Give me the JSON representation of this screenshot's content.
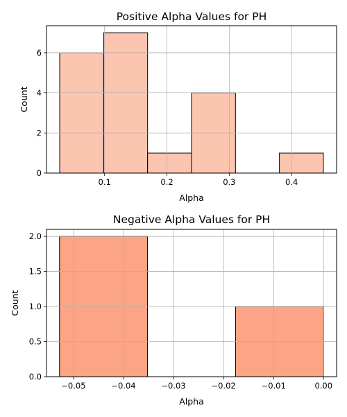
{
  "chart_data": [
    {
      "type": "bar",
      "title": "Positive Alpha Values for PH",
      "xlabel": "Alpha",
      "ylabel": "Count",
      "bin_edges": [
        0.028,
        0.0985,
        0.169,
        0.2395,
        0.31,
        0.3805,
        0.451
      ],
      "values": [
        6,
        7,
        1,
        4,
        0,
        1
      ],
      "xlim": [
        0.0068,
        0.4722
      ],
      "ylim": [
        0,
        7.35
      ],
      "xticks": [
        0.1,
        0.2,
        0.3,
        0.4
      ],
      "xtick_labels": [
        "0.1",
        "0.2",
        "0.3",
        "0.4"
      ],
      "yticks": [
        0,
        2,
        4,
        6
      ],
      "ytick_labels": [
        "0",
        "2",
        "4",
        "6"
      ],
      "grid": true,
      "bar_color": "#fcc5b0",
      "edge_color": "#000000"
    },
    {
      "type": "bar",
      "title": "Negative Alpha Values for PH",
      "xlabel": "Alpha",
      "ylabel": "Count",
      "bin_edges": [
        -0.0528,
        -0.0352,
        -0.0176,
        0.0
      ],
      "values": [
        2,
        0,
        1
      ],
      "xlim": [
        -0.0554,
        0.0026
      ],
      "ylim": [
        0,
        2.1
      ],
      "xticks": [
        -0.05,
        -0.04,
        -0.03,
        -0.02,
        -0.01,
        0.0
      ],
      "xtick_labels": [
        "−0.05",
        "−0.04",
        "−0.03",
        "−0.02",
        "−0.01",
        "0.00"
      ],
      "yticks": [
        0,
        0.5,
        1.0,
        1.5,
        2.0
      ],
      "ytick_labels": [
        "0.0",
        "0.5",
        "1.0",
        "1.5",
        "2.0"
      ],
      "grid": true,
      "bar_color": "#fca486",
      "edge_color": "#000000"
    }
  ]
}
